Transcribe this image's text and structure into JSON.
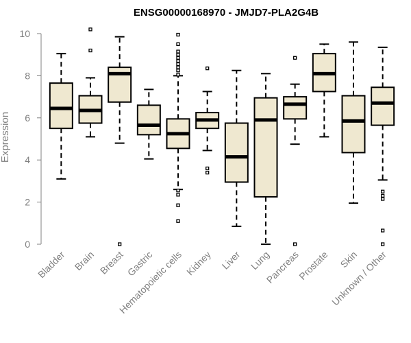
{
  "chart_data": {
    "type": "box",
    "title": "ENSG00000168970 - JMJD7-PLA2G4B",
    "ylabel": "Expression",
    "xlabel": "",
    "ylim": [
      0,
      10
    ],
    "yticks": [
      0,
      2,
      4,
      6,
      8,
      10
    ],
    "box_fill": "#efe8d0",
    "outline_color": "#000000",
    "axis_color": "#808080",
    "categories": [
      "Bladder",
      "Brain",
      "Breast",
      "Gastric",
      "Hematopoietic cells",
      "Kidney",
      "Liver",
      "Lung",
      "Pancreas",
      "Prostate",
      "Skin",
      "Unknown / Other"
    ],
    "boxes": [
      {
        "name": "Bladder",
        "whisker_low": 3.1,
        "q1": 5.5,
        "median": 6.45,
        "q3": 7.65,
        "whisker_high": 9.05,
        "outliers": []
      },
      {
        "name": "Brain",
        "whisker_low": 5.1,
        "q1": 5.75,
        "median": 6.35,
        "q3": 7.05,
        "whisker_high": 7.9,
        "outliers": [
          9.2,
          10.2
        ]
      },
      {
        "name": "Breast",
        "whisker_low": 4.8,
        "q1": 6.75,
        "median": 8.1,
        "q3": 8.4,
        "whisker_high": 9.85,
        "outliers": [
          0.0
        ]
      },
      {
        "name": "Gastric",
        "whisker_low": 4.05,
        "q1": 5.2,
        "median": 5.65,
        "q3": 6.6,
        "whisker_high": 7.35,
        "outliers": []
      },
      {
        "name": "Hematopoietic cells",
        "whisker_low": 2.6,
        "q1": 4.55,
        "median": 5.25,
        "q3": 5.95,
        "whisker_high": 8.0,
        "outliers": [
          1.1,
          1.85,
          2.35,
          2.55,
          8.05,
          8.25,
          8.4,
          8.55,
          8.7,
          8.85,
          9.0,
          9.15,
          9.5,
          9.95
        ]
      },
      {
        "name": "Kidney",
        "whisker_low": 4.45,
        "q1": 5.5,
        "median": 5.9,
        "q3": 6.25,
        "whisker_high": 7.25,
        "outliers": [
          3.4,
          3.6,
          8.35
        ]
      },
      {
        "name": "Liver",
        "whisker_low": 0.85,
        "q1": 2.95,
        "median": 4.15,
        "q3": 5.75,
        "whisker_high": 8.25,
        "outliers": []
      },
      {
        "name": "Lung",
        "whisker_low": 0.0,
        "q1": 2.25,
        "median": 5.9,
        "q3": 6.95,
        "whisker_high": 8.1,
        "outliers": []
      },
      {
        "name": "Pancreas",
        "whisker_low": 4.75,
        "q1": 5.95,
        "median": 6.65,
        "q3": 7.0,
        "whisker_high": 7.6,
        "outliers": [
          0.0,
          8.85
        ]
      },
      {
        "name": "Prostate",
        "whisker_low": 5.1,
        "q1": 7.25,
        "median": 8.1,
        "q3": 9.05,
        "whisker_high": 9.5,
        "outliers": []
      },
      {
        "name": "Skin",
        "whisker_low": 1.95,
        "q1": 4.35,
        "median": 5.85,
        "q3": 7.05,
        "whisker_high": 9.6,
        "outliers": []
      },
      {
        "name": "Unknown / Other",
        "whisker_low": 3.05,
        "q1": 5.65,
        "median": 6.7,
        "q3": 7.45,
        "whisker_high": 9.35,
        "outliers": [
          0.0,
          0.65,
          2.15,
          2.3,
          2.5
        ]
      }
    ]
  }
}
